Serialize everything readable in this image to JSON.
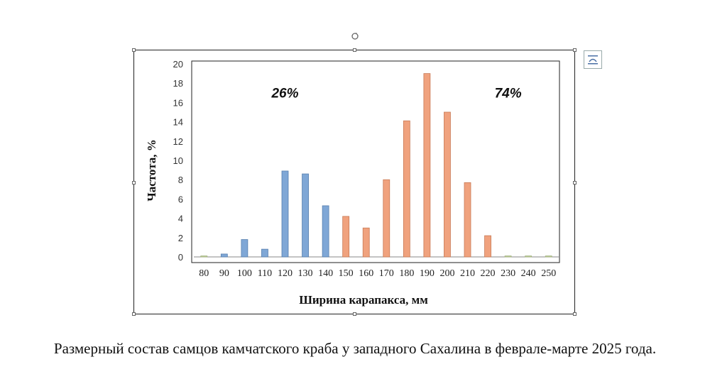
{
  "chart_data": {
    "type": "bar",
    "categories": [
      "80",
      "90",
      "100",
      "110",
      "120",
      "130",
      "140",
      "150",
      "160",
      "170",
      "180",
      "190",
      "200",
      "210",
      "220",
      "230",
      "240",
      "250"
    ],
    "values": [
      0.1,
      0.3,
      1.8,
      0.8,
      8.9,
      8.6,
      5.3,
      4.2,
      3.0,
      8.0,
      14.1,
      19.0,
      15.0,
      7.7,
      2.2,
      0.1,
      0.1,
      0.1
    ],
    "bar_colors": [
      "#c5d6a0",
      "#7fa7d6",
      "#7fa7d6",
      "#7fa7d6",
      "#7fa7d6",
      "#7fa7d6",
      "#7fa7d6",
      "#f0a27e",
      "#f0a27e",
      "#f0a27e",
      "#f0a27e",
      "#f0a27e",
      "#f0a27e",
      "#f0a27e",
      "#f0a27e",
      "#c5d6a0",
      "#c5d6a0",
      "#c5d6a0"
    ],
    "ylim": [
      0,
      20
    ],
    "yticks": [
      "0",
      "2",
      "4",
      "6",
      "8",
      "10",
      "12",
      "14",
      "16",
      "18",
      "20"
    ],
    "xlabel": "Ширина карапакса, мм",
    "ylabel": "Частота, %",
    "annotations": [
      {
        "text": "26%",
        "x": "120",
        "y": 16.5
      },
      {
        "text": "74%",
        "x": "230",
        "y": 16.5
      }
    ],
    "grid": false
  },
  "caption": "Размерный состав самцов камчатского краба у западного Сахалина в феврале-марте 2025 года."
}
